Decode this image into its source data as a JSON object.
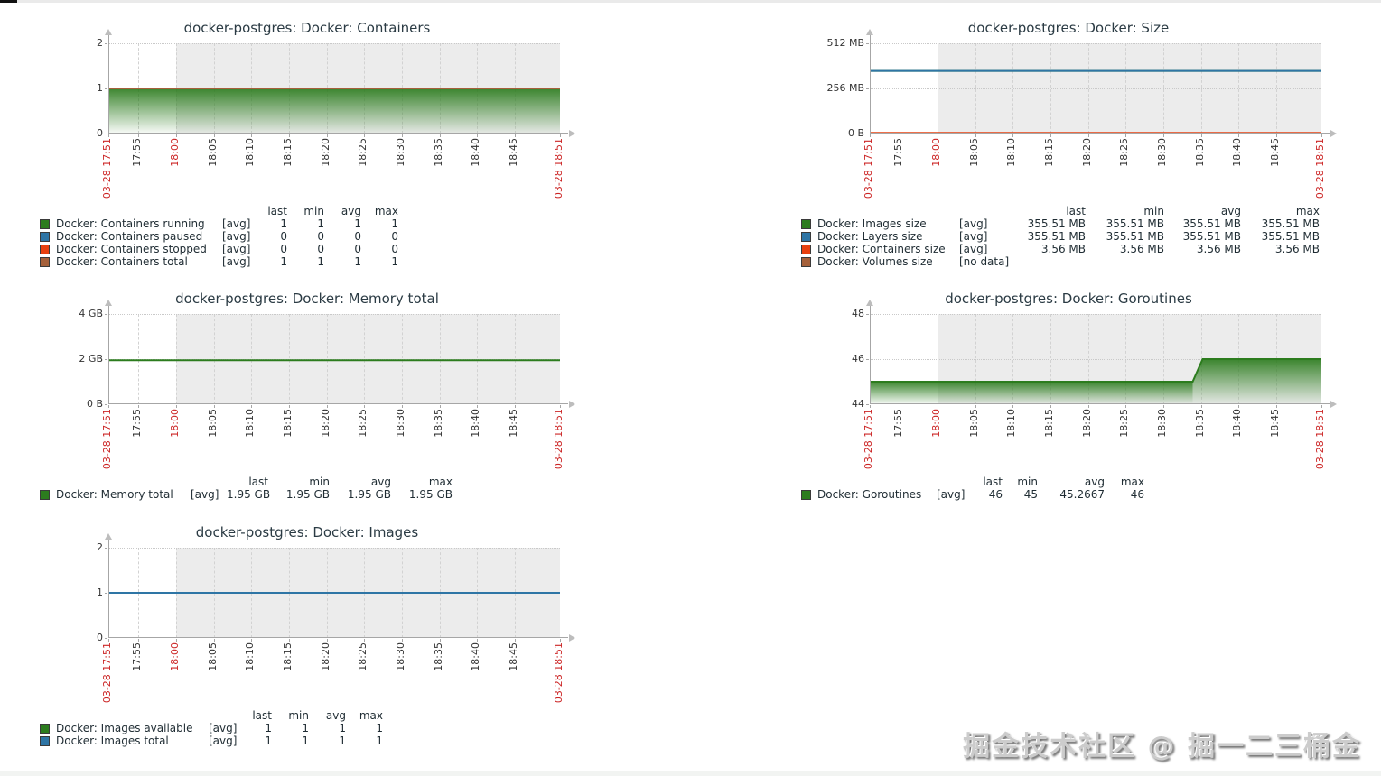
{
  "page": {
    "watermark_text": "掘金技术社区 @ 掘一二三桶金"
  },
  "legend_headers": [
    "last",
    "min",
    "avg",
    "max"
  ],
  "x_axis": {
    "shade_from": 0.15,
    "range": [
      "03-28 17:51",
      "03-28 18:51"
    ],
    "ticks": [
      {
        "label": "03-28 17:51",
        "f": 0.0,
        "em": true
      },
      {
        "label": "17:55",
        "f": 0.0667,
        "em": false
      },
      {
        "label": "18:00",
        "f": 0.15,
        "em": true
      },
      {
        "label": "18:05",
        "f": 0.2333,
        "em": false
      },
      {
        "label": "18:10",
        "f": 0.3167,
        "em": false
      },
      {
        "label": "18:15",
        "f": 0.4,
        "em": false
      },
      {
        "label": "18:20",
        "f": 0.4833,
        "em": false
      },
      {
        "label": "18:25",
        "f": 0.5667,
        "em": false
      },
      {
        "label": "18:30",
        "f": 0.65,
        "em": false
      },
      {
        "label": "18:35",
        "f": 0.7333,
        "em": false
      },
      {
        "label": "18:40",
        "f": 0.8167,
        "em": false
      },
      {
        "label": "18:45",
        "f": 0.9,
        "em": false
      },
      {
        "label": "03-28 18:51",
        "f": 1.0,
        "em": true
      }
    ]
  },
  "chart_data": [
    {
      "id": "containers",
      "pos": "r1c1",
      "type": "area",
      "title": "docker-postgres: Docker: Containers",
      "ylim": [
        0,
        2
      ],
      "y_ticks": [
        {
          "label": "0",
          "f": 0
        },
        {
          "label": "1",
          "f": 0.5
        },
        {
          "label": "2",
          "f": 1
        }
      ],
      "series": [
        {
          "name": "Docker: Containers running",
          "color": "#2C7C1E",
          "draw": "area",
          "points": [
            [
              0,
              1
            ],
            [
              1,
              1
            ]
          ]
        },
        {
          "name": "Docker: Containers paused",
          "color": "#2E75A5",
          "draw": "line",
          "points": [
            [
              0,
              0
            ],
            [
              1,
              0
            ]
          ]
        },
        {
          "name": "Docker: Containers stopped",
          "color": "#E8400F",
          "draw": "line",
          "points": [
            [
              0,
              0
            ],
            [
              1,
              0
            ]
          ]
        },
        {
          "name": "Docker: Containers total",
          "color": "#A5603A",
          "draw": "line",
          "points": [
            [
              0,
              1
            ],
            [
              1,
              1
            ]
          ]
        }
      ],
      "legend": {
        "cols": [
          18,
          184,
          40,
          32,
          41,
          41,
          41
        ],
        "rows": [
          {
            "swatch": "#2C7C1E",
            "label": "Docker: Containers running",
            "func": "[avg]",
            "values": [
              "1",
              "1",
              "1",
              "1"
            ]
          },
          {
            "swatch": "#2E75A5",
            "label": "Docker: Containers paused",
            "func": "[avg]",
            "values": [
              "0",
              "0",
              "0",
              "0"
            ]
          },
          {
            "swatch": "#E8400F",
            "label": "Docker: Containers stopped",
            "func": "[avg]",
            "values": [
              "0",
              "0",
              "0",
              "0"
            ]
          },
          {
            "swatch": "#A5603A",
            "label": "Docker: Containers total",
            "func": "[avg]",
            "values": [
              "1",
              "1",
              "1",
              "1"
            ]
          }
        ]
      }
    },
    {
      "id": "size",
      "pos": "r1c2",
      "type": "line",
      "title": "docker-postgres: Docker: Size",
      "ylim": [
        0,
        512
      ],
      "y_ticks": [
        {
          "label": "0 B",
          "f": 0
        },
        {
          "label": "256 MB",
          "f": 0.5
        },
        {
          "label": "512 MB",
          "f": 1
        }
      ],
      "series": [
        {
          "name": "Docker: Images size",
          "color": "#2C7C1E",
          "draw": "line",
          "points": [
            [
              0,
              355.51
            ],
            [
              1,
              355.51
            ]
          ]
        },
        {
          "name": "Docker: Layers size",
          "color": "#2E75A5",
          "draw": "line",
          "points": [
            [
              0,
              355.51
            ],
            [
              1,
              355.51
            ]
          ]
        },
        {
          "name": "Docker: Containers size",
          "color": "#E8400F",
          "draw": "line",
          "points": [
            [
              0,
              3.56
            ],
            [
              1,
              3.56
            ]
          ]
        }
      ],
      "legend": {
        "cols": [
          18,
          157,
          60,
          80,
          87,
          85,
          87
        ],
        "rows": [
          {
            "swatch": "#2C7C1E",
            "label": "Docker: Images size",
            "func": "[avg]",
            "values": [
              "355.51 MB",
              "355.51 MB",
              "355.51 MB",
              "355.51 MB"
            ]
          },
          {
            "swatch": "#2E75A5",
            "label": "Docker: Layers size",
            "func": "[avg]",
            "values": [
              "355.51 MB",
              "355.51 MB",
              "355.51 MB",
              "355.51 MB"
            ]
          },
          {
            "swatch": "#E8400F",
            "label": "Docker: Containers size",
            "func": "[avg]",
            "values": [
              "3.56 MB",
              "3.56 MB",
              "3.56 MB",
              "3.56 MB"
            ]
          },
          {
            "swatch": "#A5603A",
            "label": "Docker: Volumes size",
            "func": "[no data]",
            "values": [
              "",
              "",
              "",
              ""
            ]
          }
        ]
      }
    },
    {
      "id": "memory-total",
      "pos": "r2c1",
      "type": "line",
      "title": "docker-postgres: Docker: Memory total",
      "ylim": [
        0,
        4
      ],
      "y_ticks": [
        {
          "label": "0 B",
          "f": 0
        },
        {
          "label": "2 GB",
          "f": 0.5
        },
        {
          "label": "4 GB",
          "f": 1
        }
      ],
      "series": [
        {
          "name": "Docker: Memory total",
          "color": "#2C7C1E",
          "draw": "line",
          "points": [
            [
              0,
              1.95
            ],
            [
              1,
              1.95
            ]
          ]
        }
      ],
      "legend": {
        "cols": [
          18,
          149,
          40,
          46,
          68,
          68,
          68
        ],
        "rows": [
          {
            "swatch": "#2C7C1E",
            "label": "Docker: Memory total",
            "func": "[avg]",
            "values": [
              "1.95 GB",
              "1.95 GB",
              "1.95 GB",
              "1.95 GB"
            ]
          }
        ]
      }
    },
    {
      "id": "goroutines",
      "pos": "r2c2",
      "type": "area",
      "title": "docker-postgres: Docker: Goroutines",
      "ylim": [
        44,
        48
      ],
      "y_ticks": [
        {
          "label": "44",
          "f": 0
        },
        {
          "label": "46",
          "f": 0.5
        },
        {
          "label": "48",
          "f": 1
        }
      ],
      "series": [
        {
          "name": "Docker: Goroutines",
          "color": "#2C7C1E",
          "draw": "area",
          "points": [
            [
              0,
              45
            ],
            [
              0.715,
              45
            ],
            [
              0.737,
              46
            ],
            [
              1,
              46
            ]
          ]
        }
      ],
      "legend": {
        "cols": [
          18,
          132,
          40,
          33,
          39,
          74,
          44
        ],
        "rows": [
          {
            "swatch": "#2C7C1E",
            "label": "Docker: Goroutines",
            "func": "[avg]",
            "values": [
              "46",
              "45",
              "45.2667",
              "46"
            ]
          }
        ]
      }
    },
    {
      "id": "images",
      "pos": "r3c1",
      "type": "line",
      "title": "docker-postgres: Docker: Images",
      "ylim": [
        0,
        2
      ],
      "y_ticks": [
        {
          "label": "0",
          "f": 0
        },
        {
          "label": "1",
          "f": 0.5
        },
        {
          "label": "2",
          "f": 1
        }
      ],
      "series": [
        {
          "name": "Docker: Images available",
          "color": "#2C7C1E",
          "draw": "line",
          "points": [
            [
              0,
              1
            ],
            [
              1,
              1
            ]
          ]
        },
        {
          "name": "Docker: Images total",
          "color": "#2E75A5",
          "draw": "line",
          "points": [
            [
              0,
              1
            ],
            [
              1,
              1
            ]
          ]
        }
      ],
      "legend": {
        "cols": [
          18,
          169,
          40,
          30,
          41,
          41,
          41
        ],
        "rows": [
          {
            "swatch": "#2C7C1E",
            "label": "Docker: Images available",
            "func": "[avg]",
            "values": [
              "1",
              "1",
              "1",
              "1"
            ]
          },
          {
            "swatch": "#2E75A5",
            "label": "Docker: Images total",
            "func": "[avg]",
            "values": [
              "1",
              "1",
              "1",
              "1"
            ]
          }
        ]
      }
    }
  ]
}
